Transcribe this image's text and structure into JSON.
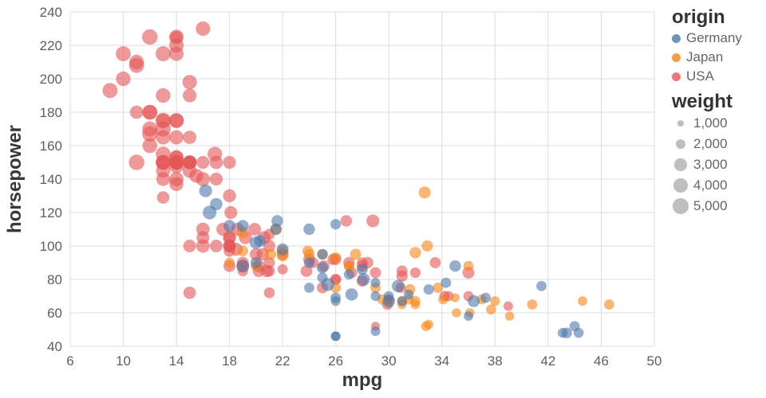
{
  "chart_data": {
    "type": "scatter",
    "title": "",
    "xlabel": "mpg",
    "ylabel": "horsepower",
    "xlim": [
      6,
      50
    ],
    "ylim": [
      40,
      240
    ],
    "xticks": [
      6,
      10,
      14,
      18,
      22,
      26,
      30,
      34,
      38,
      42,
      46,
      50
    ],
    "yticks": [
      40,
      60,
      80,
      100,
      120,
      140,
      160,
      180,
      200,
      220,
      240
    ],
    "grid": true,
    "point_opacity": 0.6,
    "legend": {
      "position": "right",
      "origin": {
        "title": "origin",
        "items": [
          {
            "label": "Germany",
            "color": "#4c78a8"
          },
          {
            "label": "Japan",
            "color": "#f58518"
          },
          {
            "label": "USA",
            "color": "#e45756"
          }
        ]
      },
      "weight": {
        "title": "weight",
        "items": [
          {
            "label": "1,000",
            "value": 1000
          },
          {
            "label": "2,000",
            "value": 2000
          },
          {
            "label": "3,000",
            "value": 3000
          },
          {
            "label": "4,000",
            "value": 4000
          },
          {
            "label": "5,000",
            "value": 5000
          }
        ]
      }
    },
    "fields": {
      "x": "mpg",
      "y": "horsepower",
      "size": "weight",
      "color": "origin"
    },
    "points": [
      [
        9,
        193,
        4732,
        "USA"
      ],
      [
        10,
        215,
        4615,
        "USA"
      ],
      [
        10,
        200,
        4376,
        "USA"
      ],
      [
        11,
        210,
        4382,
        "USA"
      ],
      [
        11,
        208,
        4633,
        "USA"
      ],
      [
        11,
        180,
        3664,
        "USA"
      ],
      [
        11,
        150,
        4997,
        "USA"
      ],
      [
        12,
        180,
        4490,
        "USA"
      ],
      [
        12,
        167,
        4906,
        "USA"
      ],
      [
        12,
        170,
        4654,
        "USA"
      ],
      [
        12,
        180,
        4499,
        "USA"
      ],
      [
        12,
        160,
        4456,
        "USA"
      ],
      [
        12,
        225,
        4951,
        "USA"
      ],
      [
        13,
        170,
        4746,
        "USA"
      ],
      [
        13,
        175,
        5140,
        "USA"
      ],
      [
        13,
        190,
        4422,
        "USA"
      ],
      [
        13,
        145,
        4098,
        "USA"
      ],
      [
        13,
        150,
        4294,
        "USA"
      ],
      [
        13,
        165,
        4274,
        "USA"
      ],
      [
        13,
        155,
        4502,
        "USA"
      ],
      [
        13,
        215,
        4735,
        "USA"
      ],
      [
        13,
        175,
        3821,
        "USA"
      ],
      [
        13,
        150,
        4699,
        "USA"
      ],
      [
        13,
        129,
        3169,
        "USA"
      ],
      [
        13,
        140,
        3962,
        "USA"
      ],
      [
        13,
        150,
        3940,
        "USA"
      ],
      [
        14,
        220,
        4354,
        "USA"
      ],
      [
        14,
        215,
        4312,
        "USA"
      ],
      [
        14,
        225,
        4425,
        "USA"
      ],
      [
        14,
        165,
        4209,
        "USA"
      ],
      [
        14,
        175,
        4464,
        "USA"
      ],
      [
        14,
        153,
        4154,
        "USA"
      ],
      [
        14,
        150,
        4096,
        "USA"
      ],
      [
        14,
        175,
        4385,
        "USA"
      ],
      [
        14,
        153,
        4129,
        "USA"
      ],
      [
        14,
        150,
        4077,
        "USA"
      ],
      [
        14,
        140,
        4215,
        "USA"
      ],
      [
        14,
        150,
        4457,
        "USA"
      ],
      [
        14,
        150,
        4257,
        "USA"
      ],
      [
        14,
        148,
        4657,
        "USA"
      ],
      [
        14,
        137,
        4042,
        "USA"
      ],
      [
        14,
        225,
        3086,
        "USA"
      ],
      [
        15,
        165,
        3693,
        "USA"
      ],
      [
        15,
        198,
        4341,
        "USA"
      ],
      [
        15,
        190,
        3850,
        "USA"
      ],
      [
        15,
        150,
        3761,
        "USA"
      ],
      [
        15,
        150,
        4135,
        "USA"
      ],
      [
        15,
        145,
        4082,
        "USA"
      ],
      [
        15,
        150,
        3892,
        "USA"
      ],
      [
        15,
        150,
        3399,
        "USA"
      ],
      [
        15,
        100,
        3336,
        "USA"
      ],
      [
        15,
        72,
        3169,
        "USA"
      ],
      [
        15.5,
        142,
        4054,
        "USA"
      ],
      [
        16,
        230,
        4278,
        "USA"
      ],
      [
        16,
        150,
        3433,
        "USA"
      ],
      [
        16,
        105,
        3439,
        "USA"
      ],
      [
        16,
        140,
        4141,
        "USA"
      ],
      [
        16,
        100,
        3781,
        "USA"
      ],
      [
        16,
        110,
        3632,
        "USA"
      ],
      [
        16.9,
        155,
        4360,
        "USA"
      ],
      [
        17,
        140,
        3449,
        "USA"
      ],
      [
        17,
        100,
        3329,
        "USA"
      ],
      [
        17,
        150,
        3672,
        "USA"
      ],
      [
        17.5,
        110,
        3520,
        "USA"
      ],
      [
        18,
        130,
        3504,
        "USA"
      ],
      [
        18,
        150,
        3436,
        "USA"
      ],
      [
        18,
        100,
        3288,
        "USA"
      ],
      [
        18,
        97,
        2774,
        "USA"
      ],
      [
        18,
        100,
        2789,
        "USA"
      ],
      [
        18,
        88,
        2945,
        "USA"
      ],
      [
        18,
        105,
        3121,
        "USA"
      ],
      [
        18,
        100,
        3278,
        "USA"
      ],
      [
        18,
        105,
        3613,
        "USA"
      ],
      [
        18.1,
        120,
        3410,
        "USA"
      ],
      [
        18.6,
        110,
        3620,
        "USA"
      ],
      [
        18.5,
        98,
        3525,
        "USA"
      ],
      [
        19,
        88,
        3302,
        "USA"
      ],
      [
        19,
        90,
        2901,
        "USA"
      ],
      [
        19,
        85,
        2310,
        "USA"
      ],
      [
        19.2,
        105,
        3535,
        "USA"
      ],
      [
        19.9,
        110,
        3365,
        "USA"
      ],
      [
        20,
        95,
        3282,
        "USA"
      ],
      [
        20.2,
        85,
        2965,
        "USA"
      ],
      [
        20.5,
        95,
        3155,
        "USA"
      ],
      [
        20.6,
        105,
        3380,
        "USA"
      ],
      [
        20.8,
        85,
        3070,
        "USA"
      ],
      [
        20.2,
        88,
        3060,
        "USA"
      ],
      [
        21,
        85,
        2587,
        "USA"
      ],
      [
        21,
        90,
        2648,
        "USA"
      ],
      [
        21,
        100,
        3021,
        "USA"
      ],
      [
        21,
        107,
        2472,
        "USA"
      ],
      [
        21,
        72,
        2401,
        "USA"
      ],
      [
        22,
        95,
        2904,
        "USA"
      ],
      [
        22,
        86,
        2226,
        "USA"
      ],
      [
        23.8,
        85,
        2855,
        "USA"
      ],
      [
        24,
        92,
        2865,
        "USA"
      ],
      [
        24.3,
        90,
        2420,
        "USA"
      ],
      [
        25,
        75,
        2542,
        "USA"
      ],
      [
        25.1,
        88,
        2720,
        "USA"
      ],
      [
        25.8,
        92,
        2620,
        "USA"
      ],
      [
        26,
        80,
        2451,
        "USA"
      ],
      [
        26,
        80,
        2164,
        "USA"
      ],
      [
        26,
        92,
        2585,
        "USA"
      ],
      [
        26.8,
        115,
        2700,
        "USA"
      ],
      [
        27.2,
        84,
        2490,
        "USA"
      ],
      [
        27,
        90,
        2735,
        "USA"
      ],
      [
        28,
        88,
        2605,
        "USA"
      ],
      [
        28,
        90,
        2264,
        "USA"
      ],
      [
        28,
        79,
        2625,
        "USA"
      ],
      [
        28.4,
        90,
        2670,
        "USA"
      ],
      [
        28.8,
        115,
        3415,
        "USA"
      ],
      [
        29,
        52,
        1649,
        "USA"
      ],
      [
        29,
        84,
        2525,
        "USA"
      ],
      [
        29.9,
        65,
        2380,
        "USA"
      ],
      [
        30,
        68,
        2155,
        "USA"
      ],
      [
        30.9,
        75,
        2230,
        "USA"
      ],
      [
        31,
        85,
        2575,
        "USA"
      ],
      [
        31,
        82,
        2720,
        "USA"
      ],
      [
        32,
        84,
        2295,
        "USA"
      ],
      [
        33.5,
        90,
        2556,
        "USA"
      ],
      [
        34.2,
        70,
        2200,
        "USA"
      ],
      [
        34.5,
        70,
        2150,
        "USA"
      ],
      [
        36,
        70,
        2125,
        "USA"
      ],
      [
        36,
        84,
        2905,
        "USA"
      ],
      [
        39,
        64,
        1875,
        "USA"
      ],
      [
        24,
        95,
        2372,
        "Japan"
      ],
      [
        27,
        88,
        2130,
        "Japan"
      ],
      [
        27,
        88,
        2134,
        "Japan"
      ],
      [
        25,
        95,
        2228,
        "Japan"
      ],
      [
        31,
        65,
        1773,
        "Japan"
      ],
      [
        32,
        65,
        1836,
        "Japan"
      ],
      [
        35,
        69,
        1613,
        "Japan"
      ],
      [
        20,
        88,
        2279,
        "Japan"
      ],
      [
        22,
        94,
        2379,
        "Japan"
      ],
      [
        19,
        97,
        2330,
        "Japan"
      ],
      [
        18,
        90,
        2124,
        "Japan"
      ],
      [
        31,
        67,
        1950,
        "Japan"
      ],
      [
        33,
        53,
        1795,
        "Japan"
      ],
      [
        29,
        75,
        2171,
        "Japan"
      ],
      [
        19,
        108,
        2930,
        "Japan"
      ],
      [
        26,
        93,
        2391,
        "Japan"
      ],
      [
        26,
        75,
        2265,
        "Japan"
      ],
      [
        32.8,
        52,
        1985,
        "Japan"
      ],
      [
        40.8,
        65,
        2110,
        "Japan"
      ],
      [
        31.5,
        68,
        2045,
        "Japan"
      ],
      [
        29.5,
        68,
        2135,
        "Japan"
      ],
      [
        21.1,
        95,
        2515,
        "Japan"
      ],
      [
        23.9,
        97,
        2405,
        "Japan"
      ],
      [
        31.6,
        74,
        2360,
        "Japan"
      ],
      [
        32.7,
        132,
        2910,
        "Japan"
      ],
      [
        39.1,
        58,
        1755,
        "Japan"
      ],
      [
        35.1,
        60,
        1760,
        "Japan"
      ],
      [
        30,
        67,
        1985,
        "Japan"
      ],
      [
        37.7,
        62,
        2050,
        "Japan"
      ],
      [
        34.1,
        68,
        1985,
        "Japan"
      ],
      [
        33.7,
        75,
        2210,
        "Japan"
      ],
      [
        32,
        96,
        2665,
        "Japan"
      ],
      [
        36,
        88,
        2160,
        "Japan"
      ],
      [
        32,
        67,
        2145,
        "Japan"
      ],
      [
        38,
        67,
        1995,
        "Japan"
      ],
      [
        37,
        68,
        2025,
        "Japan"
      ],
      [
        46.6,
        65,
        2110,
        "Japan"
      ],
      [
        44.6,
        67,
        1850,
        "Japan"
      ],
      [
        27.5,
        95,
        2560,
        "Japan"
      ],
      [
        22,
        97,
        2770,
        "Japan"
      ],
      [
        21.5,
        110,
        2720,
        "Japan"
      ],
      [
        36.1,
        60,
        1800,
        "Japan"
      ],
      [
        32.9,
        100,
        2615,
        "Japan"
      ],
      [
        26,
        46,
        1835,
        "Germany"
      ],
      [
        26,
        46,
        1950,
        "Germany"
      ],
      [
        43.1,
        48,
        1985,
        "Germany"
      ],
      [
        44.3,
        48,
        2085,
        "Germany"
      ],
      [
        43.4,
        48,
        2335,
        "Germany"
      ],
      [
        44,
        52,
        2130,
        "Germany"
      ],
      [
        29,
        49,
        1867,
        "Germany"
      ],
      [
        31,
        67,
        2065,
        "Germany"
      ],
      [
        30,
        70,
        2074,
        "Germany"
      ],
      [
        24,
        75,
        2158,
        "Germany"
      ],
      [
        25,
        81,
        2220,
        "Germany"
      ],
      [
        28,
        86,
        2464,
        "Germany"
      ],
      [
        26,
        69,
        2189,
        "Germany"
      ],
      [
        27,
        83,
        2202,
        "Germany"
      ],
      [
        36,
        58,
        1825,
        "Germany"
      ],
      [
        24,
        90,
        2430,
        "Germany"
      ],
      [
        20,
        90,
        2582,
        "Germany"
      ],
      [
        20.3,
        103,
        2830,
        "Germany"
      ],
      [
        36.4,
        67,
        2950,
        "Germany"
      ],
      [
        34.3,
        78,
        2188,
        "Germany"
      ],
      [
        26,
        113,
        2234,
        "Germany"
      ],
      [
        21.5,
        110,
        2600,
        "Germany"
      ],
      [
        25,
        95,
        2375,
        "Germany"
      ],
      [
        24,
        110,
        2660,
        "Germany"
      ],
      [
        21.6,
        115,
        2795,
        "Germany"
      ],
      [
        18,
        112,
        2933,
        "Germany"
      ],
      [
        19,
        112,
        2868,
        "Germany"
      ],
      [
        22,
        98,
        2945,
        "Germany"
      ],
      [
        20,
        102,
        3150,
        "Germany"
      ],
      [
        17,
        125,
        3140,
        "Germany"
      ],
      [
        30.7,
        76,
        3160,
        "Germany"
      ],
      [
        16.2,
        133,
        3420,
        "Germany"
      ],
      [
        25,
        87,
        2672,
        "Germany"
      ],
      [
        19,
        88,
        3270,
        "Germany"
      ],
      [
        27.2,
        71,
        3190,
        "Germany"
      ],
      [
        28.1,
        80,
        3230,
        "Germany"
      ],
      [
        16.5,
        120,
        3820,
        "Germany"
      ],
      [
        25.4,
        77,
        3530,
        "Germany"
      ],
      [
        30,
        67,
        3250,
        "Germany"
      ],
      [
        29,
        70,
        1937,
        "Germany"
      ],
      [
        31.5,
        71,
        1990,
        "Germany"
      ],
      [
        29,
        78,
        1940,
        "Germany"
      ],
      [
        41.5,
        76,
        2144,
        "Germany"
      ],
      [
        33,
        74,
        2190,
        "Germany"
      ],
      [
        35,
        88,
        2720,
        "Germany"
      ],
      [
        37.3,
        69,
        2130,
        "Germany"
      ],
      [
        26,
        67,
        1940,
        "Germany"
      ]
    ]
  }
}
